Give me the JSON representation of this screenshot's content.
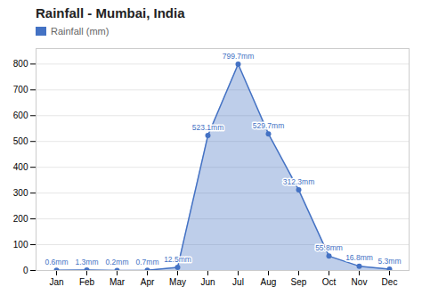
{
  "chart_data": {
    "type": "area",
    "title": "Rainfall - Mumbai, India",
    "categories": [
      "Jan",
      "Feb",
      "Mar",
      "Apr",
      "May",
      "Jun",
      "Jul",
      "Aug",
      "Sep",
      "Oct",
      "Nov",
      "Dec"
    ],
    "series": [
      {
        "name": "Rainfall (mm)",
        "color": "#4472c4",
        "values": [
          0.6,
          1.3,
          0.2,
          0.7,
          12.5,
          523.1,
          799.7,
          529.7,
          312.3,
          55.8,
          16.8,
          5.3
        ],
        "value_labels": [
          "0.6mm",
          "1.3mm",
          "0.2mm",
          "0.7mm",
          "12.5mm",
          "523.1mm",
          "799.7mm",
          "529.7mm",
          "312.3mm",
          "55.8mm",
          "16.8mm",
          "5.3mm"
        ]
      }
    ],
    "ylim": [
      0,
      860
    ],
    "yticks": [
      0,
      100,
      200,
      300,
      400,
      500,
      600,
      700,
      800
    ],
    "grid": true,
    "legend": "upper left",
    "data_labels": true,
    "marker": "circle"
  }
}
